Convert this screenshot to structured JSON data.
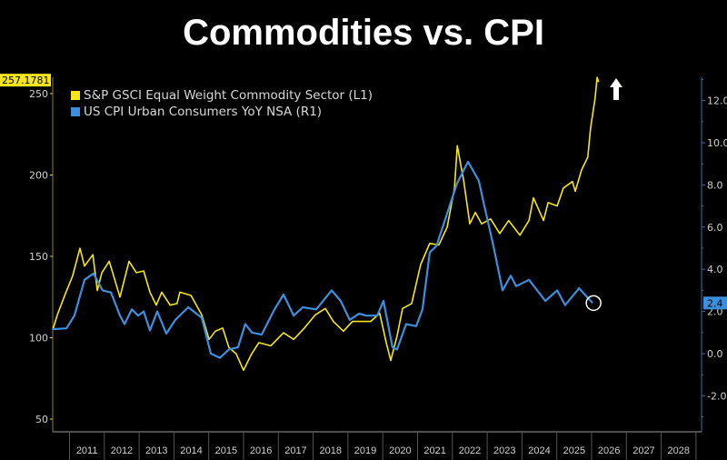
{
  "title": "Commodities vs. CPI",
  "chart_data": {
    "type": "line",
    "grid": false,
    "legend_position": "top-left",
    "x_axis": {
      "type": "date",
      "tick_labels": [
        "2011",
        "2012",
        "2013",
        "2014",
        "2015",
        "2016",
        "2017",
        "2018",
        "2019",
        "2020",
        "2021",
        "2022",
        "2023",
        "2024",
        "2025",
        "2026",
        "2027",
        "2028"
      ],
      "range": [
        2010.5,
        2029
      ]
    },
    "left_axis": {
      "ticks": [
        50,
        100,
        150,
        200,
        250
      ],
      "tick_labels": [
        "50",
        "100",
        "150",
        "200",
        "250"
      ],
      "range": [
        42,
        260
      ]
    },
    "right_axis": {
      "ticks": [
        -2,
        0,
        2,
        4,
        6,
        8,
        10,
        12
      ],
      "tick_labels": [
        "-2.0",
        "0.0",
        "2.0",
        "4.0",
        "6.0",
        "8.0",
        "10.0",
        "12.0"
      ],
      "range": [
        -3.7,
        13.1
      ]
    },
    "series": [
      {
        "name": "S&P GSCI Equal Weight Commodity Sector  (L1)",
        "axis": "left",
        "color": "#f5e61c",
        "last_value_label": "257.1781",
        "points": [
          [
            2010.52,
            105
          ],
          [
            2010.65,
            114
          ],
          [
            2010.88,
            127
          ],
          [
            2011.09,
            138
          ],
          [
            2011.3,
            155
          ],
          [
            2011.43,
            144
          ],
          [
            2011.67,
            151
          ],
          [
            2011.8,
            129
          ],
          [
            2011.93,
            140
          ],
          [
            2012.14,
            147
          ],
          [
            2012.45,
            125
          ],
          [
            2012.71,
            147
          ],
          [
            2012.92,
            140
          ],
          [
            2013.13,
            141
          ],
          [
            2013.31,
            128
          ],
          [
            2013.49,
            120
          ],
          [
            2013.65,
            128
          ],
          [
            2013.89,
            120
          ],
          [
            2014.09,
            121
          ],
          [
            2014.17,
            128
          ],
          [
            2014.49,
            126
          ],
          [
            2014.8,
            114
          ],
          [
            2015.01,
            99
          ],
          [
            2015.19,
            104
          ],
          [
            2015.4,
            106
          ],
          [
            2015.58,
            94
          ],
          [
            2015.79,
            90
          ],
          [
            2016.0,
            80
          ],
          [
            2016.23,
            90
          ],
          [
            2016.44,
            97
          ],
          [
            2016.78,
            95
          ],
          [
            2017.15,
            103
          ],
          [
            2017.44,
            99
          ],
          [
            2017.75,
            106
          ],
          [
            2018.06,
            114
          ],
          [
            2018.35,
            118
          ],
          [
            2018.58,
            110
          ],
          [
            2018.87,
            104
          ],
          [
            2019.13,
            110
          ],
          [
            2019.39,
            110
          ],
          [
            2019.65,
            110
          ],
          [
            2019.91,
            115
          ],
          [
            2020.1,
            97
          ],
          [
            2020.23,
            86
          ],
          [
            2020.41,
            101
          ],
          [
            2020.57,
            118
          ],
          [
            2020.83,
            121
          ],
          [
            2021.09,
            145
          ],
          [
            2021.35,
            158
          ],
          [
            2021.61,
            157
          ],
          [
            2021.85,
            168
          ],
          [
            2022.06,
            192
          ],
          [
            2022.14,
            218
          ],
          [
            2022.32,
            197
          ],
          [
            2022.5,
            170
          ],
          [
            2022.66,
            177
          ],
          [
            2022.84,
            170
          ],
          [
            2023.1,
            173
          ],
          [
            2023.36,
            164
          ],
          [
            2023.62,
            172
          ],
          [
            2023.94,
            163
          ],
          [
            2024.2,
            172
          ],
          [
            2024.33,
            186
          ],
          [
            2024.62,
            172
          ],
          [
            2024.75,
            183
          ],
          [
            2025.01,
            181
          ],
          [
            2025.19,
            192
          ],
          [
            2025.45,
            196
          ],
          [
            2025.53,
            190
          ],
          [
            2025.71,
            203
          ],
          [
            2025.89,
            211
          ],
          [
            2025.97,
            229
          ],
          [
            2026.1,
            247
          ],
          [
            2026.16,
            260
          ],
          [
            2026.2,
            257.18
          ]
        ]
      },
      {
        "name": "US CPI Urban Consumers YoY NSA  (R1)",
        "axis": "right",
        "color": "#3d8fdc",
        "last_value_label": "2.4",
        "points": [
          [
            2010.52,
            1.16
          ],
          [
            2010.91,
            1.2
          ],
          [
            2011.14,
            1.8
          ],
          [
            2011.43,
            3.5
          ],
          [
            2011.69,
            3.8
          ],
          [
            2011.95,
            3.0
          ],
          [
            2012.19,
            2.9
          ],
          [
            2012.45,
            1.8
          ],
          [
            2012.58,
            1.4
          ],
          [
            2012.79,
            2.1
          ],
          [
            2012.97,
            1.8
          ],
          [
            2013.13,
            2.0
          ],
          [
            2013.31,
            1.1
          ],
          [
            2013.52,
            2.0
          ],
          [
            2013.78,
            0.95
          ],
          [
            2014.04,
            1.6
          ],
          [
            2014.41,
            2.2
          ],
          [
            2014.8,
            1.7
          ],
          [
            2015.06,
            0.0
          ],
          [
            2015.32,
            -0.2
          ],
          [
            2015.58,
            0.2
          ],
          [
            2015.84,
            0.3
          ],
          [
            2016.05,
            1.4
          ],
          [
            2016.24,
            1.0
          ],
          [
            2016.52,
            0.9
          ],
          [
            2016.89,
            2.1
          ],
          [
            2017.15,
            2.8
          ],
          [
            2017.44,
            1.8
          ],
          [
            2017.7,
            2.2
          ],
          [
            2018.09,
            2.1
          ],
          [
            2018.53,
            3.0
          ],
          [
            2018.79,
            2.5
          ],
          [
            2019.05,
            1.6
          ],
          [
            2019.32,
            1.9
          ],
          [
            2019.52,
            1.8
          ],
          [
            2019.84,
            1.8
          ],
          [
            2020.02,
            2.5
          ],
          [
            2020.28,
            0.3
          ],
          [
            2020.41,
            0.2
          ],
          [
            2020.67,
            1.4
          ],
          [
            2020.96,
            1.3
          ],
          [
            2021.14,
            2.1
          ],
          [
            2021.35,
            4.8
          ],
          [
            2021.54,
            5.1
          ],
          [
            2021.98,
            7.3
          ],
          [
            2022.14,
            8.1
          ],
          [
            2022.45,
            9.1
          ],
          [
            2022.76,
            8.2
          ],
          [
            2022.92,
            7.0
          ],
          [
            2023.18,
            5.1
          ],
          [
            2023.44,
            3.0
          ],
          [
            2023.68,
            3.7
          ],
          [
            2023.83,
            3.2
          ],
          [
            2024.2,
            3.5
          ],
          [
            2024.67,
            2.5
          ],
          [
            2025.01,
            3.0
          ],
          [
            2025.24,
            2.3
          ],
          [
            2025.64,
            3.1
          ],
          [
            2026.03,
            2.4
          ]
        ]
      }
    ],
    "annotations": [
      {
        "type": "arrow-up",
        "color": "#ffffff",
        "near_year": 2026.7
      },
      {
        "type": "circle",
        "color": "#ffffff",
        "around": "US CPI last value"
      }
    ]
  }
}
